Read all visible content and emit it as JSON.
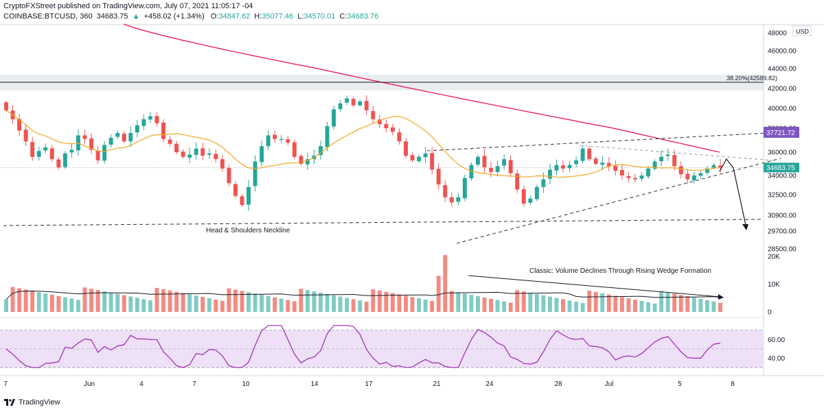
{
  "header": {
    "publisher": "CryptoFXStreet published on TradingView.com, July 07, 2021 11:05:17 -04",
    "symbol": "COINBASE:BTCUSD, 360",
    "last": "34683.75",
    "change": "+458.02 (+1.34%)",
    "o_label": "O:",
    "o_value": "34847.62",
    "h_label": "H:",
    "h_value": "35077.46",
    "l_label": "L:",
    "l_value": "34570.01",
    "c_label": "C:",
    "c_value": "34683.76"
  },
  "footer": {
    "brand": "TradingView"
  },
  "colors": {
    "up": "#26a69a",
    "down": "#ef5350",
    "vol_up": "#80cbc4",
    "vol_down": "#f28b82",
    "ma_fast": "#f5a623",
    "ma_slow": "#e91e63",
    "rsi": "#9c27b0",
    "rsi_band": "#ede0f7",
    "label_dark": "#131722",
    "label_purple": "#7e57c2"
  },
  "chart_data": [
    {
      "type": "candlestick",
      "pane": "price",
      "currency": "USD",
      "ylim": [
        28000,
        48500
      ],
      "y_ticks": [
        "48000",
        "46000.00",
        "44000.00",
        "42000.00",
        "40000.00",
        "38000.00",
        "36000.00",
        "34000.00",
        "32500.00",
        "30900.00",
        "29700.00",
        "28500.00"
      ],
      "x_tick_labels": [
        "7",
        "Jun",
        "4",
        "7",
        "10",
        "14",
        "17",
        "21",
        "24",
        "28",
        "Jul",
        "5",
        "8"
      ],
      "close_series_approx": [
        39800,
        38900,
        37800,
        36900,
        35600,
        36100,
        36400,
        35400,
        34700,
        35900,
        36200,
        37400,
        37100,
        36200,
        35300,
        36600,
        37200,
        37600,
        36900,
        37600,
        38300,
        38900,
        39200,
        38500,
        37100,
        36700,
        36000,
        35600,
        35800,
        36300,
        35700,
        35900,
        35400,
        34600,
        33400,
        32400,
        31700,
        33100,
        35200,
        36500,
        37400,
        37100,
        37100,
        36800,
        35600,
        35000,
        35400,
        35700,
        36500,
        38200,
        39900,
        40500,
        41000,
        40300,
        40700,
        39800,
        38900,
        38400,
        38000,
        37700,
        36900,
        35700,
        35300,
        35600,
        35900,
        34500,
        33300,
        32300,
        31900,
        32300,
        33800,
        34900,
        35600,
        34700,
        34300,
        34800,
        35400,
        34200,
        32900,
        31800,
        32200,
        33100,
        33700,
        34500,
        34900,
        34600,
        34900,
        35300,
        36300,
        35400,
        35000,
        35100,
        34800,
        34400,
        34000,
        33800,
        33700,
        34000,
        34600,
        35200,
        35600,
        35800,
        34800,
        34100,
        33700,
        34000,
        34200,
        34600,
        34900,
        34684
      ],
      "annotations": {
        "fib_level": "38.20%(42589.82)",
        "price_tag": "37721.72",
        "neckline_label": "Head & Shoulders Neckline",
        "resistance_band": [
          41800,
          43400
        ]
      }
    },
    {
      "type": "bar",
      "pane": "volume",
      "y_ticks": [
        "20K",
        "10K",
        "0"
      ],
      "annotation": "Classic: Volume Declines Through Rising Wedge Formation"
    },
    {
      "type": "line",
      "pane": "rsi",
      "y_ticks": [
        "60.00",
        "40.00"
      ],
      "ylim": [
        25,
        80
      ]
    }
  ]
}
